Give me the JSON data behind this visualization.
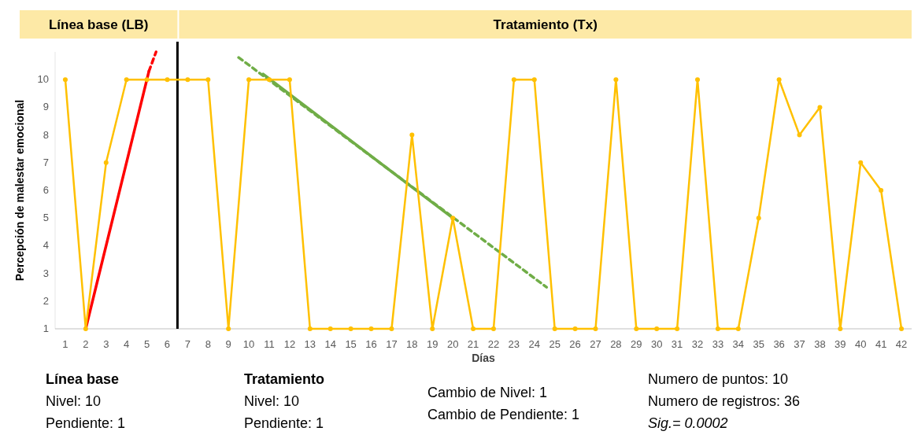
{
  "chart_data": {
    "type": "line",
    "xlabel": "Días",
    "ylabel": "Percepción de malestar emocional",
    "x": [
      1,
      2,
      3,
      4,
      5,
      6,
      7,
      8,
      9,
      10,
      11,
      12,
      13,
      14,
      15,
      16,
      17,
      18,
      19,
      20,
      21,
      22,
      23,
      24,
      25,
      26,
      27,
      28,
      29,
      30,
      31,
      32,
      33,
      34,
      35,
      36,
      37,
      38,
      39,
      40,
      41,
      42
    ],
    "series": [
      {
        "color": "#ffc000",
        "marker": "circle",
        "line_style": "solid",
        "values": [
          10,
          1,
          7,
          10,
          10,
          10,
          10,
          10,
          1,
          10,
          10,
          10,
          1,
          1,
          1,
          1,
          1,
          8,
          1,
          5,
          1,
          1,
          10,
          10,
          1,
          1,
          1,
          10,
          1,
          1,
          1,
          10,
          1,
          1,
          5,
          10,
          8,
          9,
          1,
          7,
          6,
          1
        ]
      },
      {
        "color": "#ff0000",
        "marker": "none",
        "line_style": "solid",
        "x": [
          2,
          5.1
        ],
        "values": [
          1,
          10.3
        ]
      },
      {
        "color": "#ff0000",
        "marker": "none",
        "line_style": "dashed",
        "x": [
          5.1,
          5.45
        ],
        "values": [
          10.3,
          11
        ]
      },
      {
        "color": "#70ad47",
        "marker": "none",
        "line_style": "dashed",
        "x": [
          9.5,
          24.6
        ],
        "values": [
          10.8,
          2.5
        ]
      },
      {
        "color": "#70ad47",
        "marker": "none",
        "line_style": "solid",
        "x": [
          10.7,
          20
        ],
        "values": [
          10.2,
          5
        ]
      }
    ],
    "xlim": [
      0.5,
      42.5
    ],
    "xticks": [
      1,
      2,
      3,
      4,
      5,
      6,
      7,
      8,
      9,
      10,
      11,
      12,
      13,
      14,
      15,
      16,
      17,
      18,
      19,
      20,
      21,
      22,
      23,
      24,
      25,
      26,
      27,
      28,
      29,
      30,
      31,
      32,
      33,
      34,
      35,
      36,
      37,
      38,
      39,
      40,
      41,
      42
    ],
    "ylim": [
      1,
      11
    ],
    "yticks": [
      1,
      2,
      3,
      4,
      5,
      6,
      7,
      8,
      9,
      10
    ],
    "grid": false,
    "ref_lines": [
      {
        "axis": "x",
        "value": 6.5,
        "color": "#000000",
        "line_style": "solid"
      }
    ],
    "annotations": [
      "Línea base (LB)",
      "Tratamiento (Tx)",
      "Línea base",
      "Nivel: 10",
      "Pendiente: 1",
      "Tratamiento",
      "Nivel: 10",
      "Pendiente: 1",
      "Cambio de Nivel: 1",
      "Cambio de Pendiente: 1",
      "Numero de puntos: 10",
      "Numero de registros: 36",
      "Sig.= 0.0002"
    ]
  }
}
